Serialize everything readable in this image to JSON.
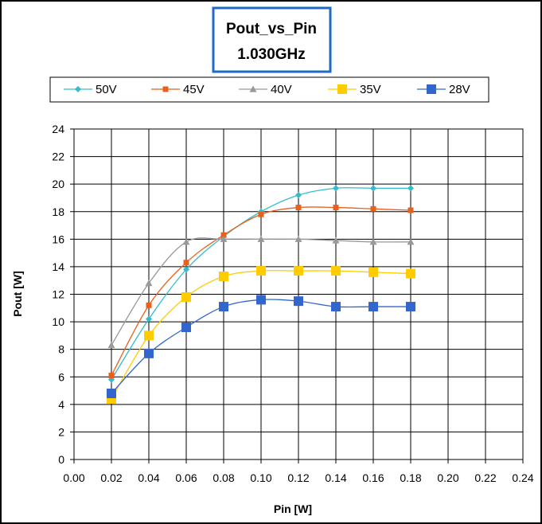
{
  "chart_data": {
    "type": "line",
    "title_lines": [
      "Pout_vs_Pin",
      "1.030GHz"
    ],
    "xlabel": "Pin [W]",
    "ylabel": "Pout [W]",
    "xlim": [
      0,
      0.24
    ],
    "ylim": [
      0,
      24
    ],
    "x_ticks": [
      "0.00",
      "0.02",
      "0.04",
      "0.06",
      "0.08",
      "0.10",
      "0.12",
      "0.14",
      "0.16",
      "0.18",
      "0.20",
      "0.22",
      "0.24"
    ],
    "y_ticks": [
      "0",
      "2",
      "4",
      "6",
      "8",
      "10",
      "12",
      "14",
      "16",
      "18",
      "20",
      "22",
      "24"
    ],
    "grid": true,
    "legend_position": "top",
    "x": [
      0.02,
      0.04,
      0.06,
      0.08,
      0.1,
      0.12,
      0.14,
      0.16,
      0.18
    ],
    "series": [
      {
        "name": "50V",
        "color": "#33BBCC",
        "marker": "diamond",
        "values": [
          5.8,
          10.2,
          13.8,
          16.2,
          18.0,
          19.2,
          19.7,
          19.7,
          19.7
        ]
      },
      {
        "name": "45V",
        "color": "#E8601C",
        "marker": "square-small",
        "values": [
          6.1,
          11.2,
          14.3,
          16.3,
          17.8,
          18.3,
          18.3,
          18.2,
          18.1
        ]
      },
      {
        "name": "40V",
        "color": "#999999",
        "marker": "triangle",
        "values": [
          8.3,
          12.8,
          15.8,
          16.0,
          16.0,
          16.0,
          15.9,
          15.8,
          15.8
        ]
      },
      {
        "name": "35V",
        "color": "#FFCC00",
        "marker": "square",
        "values": [
          4.4,
          9.0,
          11.8,
          13.3,
          13.7,
          13.7,
          13.7,
          13.6,
          13.5
        ]
      },
      {
        "name": "28V",
        "color": "#3366CC",
        "marker": "square",
        "values": [
          4.8,
          7.7,
          9.6,
          11.1,
          11.6,
          11.5,
          11.1,
          11.1,
          11.1
        ]
      }
    ]
  }
}
